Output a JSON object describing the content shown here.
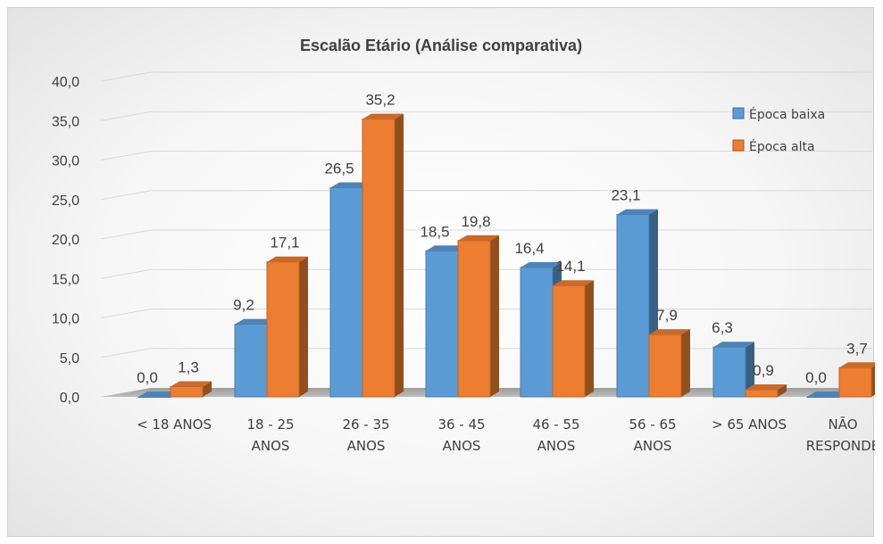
{
  "chart_data": {
    "type": "bar",
    "title": "Escalão Etário (Análise comparativa)",
    "xlabel": "",
    "ylabel": "",
    "categories": [
      [
        "< 18 ANOS"
      ],
      [
        "18 - 25",
        "ANOS"
      ],
      [
        "26 - 35",
        "ANOS"
      ],
      [
        "36 - 45",
        "ANOS"
      ],
      [
        "46 - 55",
        "ANOS"
      ],
      [
        "56 - 65",
        "ANOS"
      ],
      [
        "> 65 ANOS"
      ],
      [
        "NÃO",
        "RESPONDE"
      ]
    ],
    "series": [
      {
        "name": "Época baixa",
        "values": [
          0.0,
          9.2,
          26.5,
          18.5,
          16.4,
          23.1,
          6.3,
          0.0
        ],
        "labels": [
          "0,0",
          "9,2",
          "26,5",
          "18,5",
          "16,4",
          "23,1",
          "6,3",
          "0,0"
        ]
      },
      {
        "name": "Época alta",
        "values": [
          1.3,
          17.1,
          35.2,
          19.8,
          14.1,
          7.9,
          0.9,
          3.7
        ],
        "labels": [
          "1,3",
          "17,1",
          "35,2",
          "19,8",
          "14,1",
          "7,9",
          "0,9",
          "3,7"
        ]
      }
    ],
    "ylim": [
      0,
      40
    ],
    "yticks": [
      "0,0",
      "5,0",
      "10,0",
      "15,0",
      "20,0",
      "25,0",
      "30,0",
      "35,0",
      "40,0"
    ],
    "grid": true,
    "legend_position": "top-right",
    "style": "3d-clustered-column",
    "colors": {
      "epoca_baixa": "#5b9bd5",
      "epoca_alta": "#ed7d31"
    }
  }
}
